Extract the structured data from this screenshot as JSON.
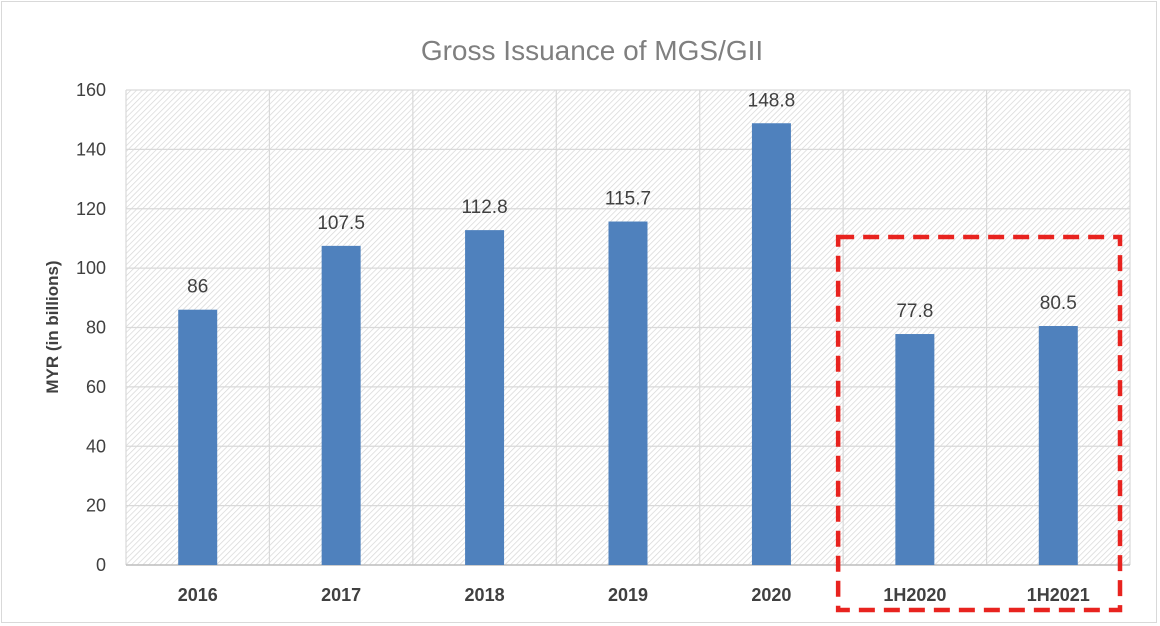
{
  "chart_data": {
    "type": "bar",
    "title": "Gross Issuance of MGS/GII",
    "xlabel": "",
    "ylabel": "MYR (in billions)",
    "categories": [
      "2016",
      "2017",
      "2018",
      "2019",
      "2020",
      "1H2020",
      "1H2021"
    ],
    "values": [
      86,
      107.5,
      112.8,
      115.7,
      148.8,
      77.8,
      80.5
    ],
    "data_labels": [
      "86",
      "107.5",
      "112.8",
      "115.7",
      "148.8",
      "77.8",
      "80.5"
    ],
    "ylim": [
      0,
      160
    ],
    "yticks": [
      "0",
      "20",
      "40",
      "60",
      "80",
      "100",
      "120",
      "140",
      "160"
    ],
    "grid": true,
    "legend": "none",
    "bar_color": "#4f81bd",
    "highlight": {
      "categories": [
        "1H2020",
        "1H2021"
      ],
      "style": "dashed box",
      "color": "#e8231f"
    }
  }
}
